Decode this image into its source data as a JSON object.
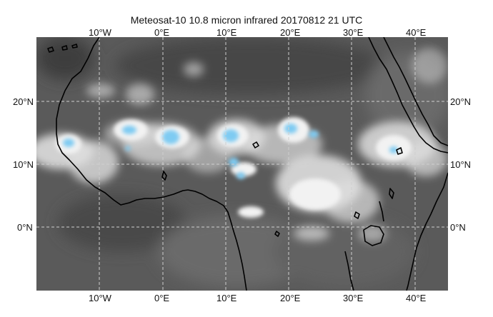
{
  "title": "Meteosat-10  10.8 micron infrared 20170812 21 UTC",
  "lon_labels": [
    "10°W",
    "0°E",
    "10°E",
    "20°E",
    "30°E",
    "40°E"
  ],
  "lat_labels": [
    "20°N",
    "10°N",
    "0°N"
  ],
  "colors": {
    "background_ir": "#585858",
    "coast": "#000000",
    "grid": "#cfcfcf",
    "cold_top": "#7ecbf2"
  },
  "grid": "dashed"
}
